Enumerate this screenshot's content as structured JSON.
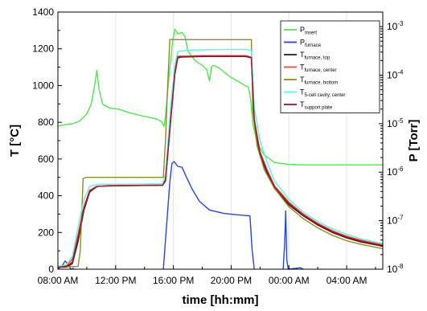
{
  "chart_data": {
    "type": "line",
    "xlabel": "time [hh:mm]",
    "ylabel_left": "T [°C]",
    "ylabel_right": "P [Torr]",
    "x_unit": "hours since 08:00 AM (day 1)",
    "xlim": [
      0,
      22.5
    ],
    "ylim_left": [
      0,
      1400
    ],
    "ylim_right_log10": [
      -8,
      -2.7
    ],
    "x_ticks": [
      {
        "value": 0,
        "label": "08:00 AM"
      },
      {
        "value": 4,
        "label": "12:00 PM"
      },
      {
        "value": 8,
        "label": "16:00 PM"
      },
      {
        "value": 12,
        "label": "20:00 PM"
      },
      {
        "value": 16,
        "label": "00:00 AM"
      },
      {
        "value": 20,
        "label": "04:00 AM"
      }
    ],
    "y_ticks_left": [
      "0",
      "200",
      "400",
      "600",
      "800",
      "1000",
      "1200",
      "1400"
    ],
    "y_ticks_right": [
      {
        "exp": -8,
        "label": "10",
        "sup": "-8"
      },
      {
        "exp": -7,
        "label": "10",
        "sup": "-7"
      },
      {
        "exp": -6,
        "label": "10",
        "sup": "-6"
      },
      {
        "exp": -5,
        "label": "10",
        "sup": "-5"
      },
      {
        "exp": -4,
        "label": "10",
        "sup": "-4"
      },
      {
        "exp": -3,
        "label": "10",
        "sup": "-3"
      }
    ],
    "vertical_gridlines": true,
    "legend_position": "top-right",
    "series": [
      {
        "name": "P",
        "sub": "Insert",
        "axis": "right",
        "color": "#4ee84e",
        "points": [
          [
            0,
            -5.05
          ],
          [
            0.5,
            -5.02
          ],
          [
            1,
            -5.0
          ],
          [
            1.5,
            -4.95
          ],
          [
            2,
            -4.8
          ],
          [
            2.3,
            -4.6
          ],
          [
            2.55,
            -4.2
          ],
          [
            2.7,
            -3.9
          ],
          [
            2.85,
            -4.3
          ],
          [
            3.1,
            -4.6
          ],
          [
            3.6,
            -4.68
          ],
          [
            4.2,
            -4.7
          ],
          [
            5,
            -4.78
          ],
          [
            6,
            -4.85
          ],
          [
            6.8,
            -4.9
          ],
          [
            7.2,
            -4.96
          ],
          [
            7.35,
            -5.06
          ],
          [
            7.45,
            -4.85
          ],
          [
            7.7,
            -4.0
          ],
          [
            7.95,
            -3.3
          ],
          [
            8.1,
            -3.05
          ],
          [
            8.3,
            -3.15
          ],
          [
            8.6,
            -3.12
          ],
          [
            8.8,
            -3.2
          ],
          [
            9.0,
            -3.5
          ],
          [
            9.5,
            -3.7
          ],
          [
            10,
            -3.8
          ],
          [
            10.3,
            -3.88
          ],
          [
            10.5,
            -4.12
          ],
          [
            10.65,
            -3.82
          ],
          [
            10.8,
            -3.8
          ],
          [
            11.2,
            -3.86
          ],
          [
            11.6,
            -3.96
          ],
          [
            12,
            -4.05
          ],
          [
            12.6,
            -4.15
          ],
          [
            13,
            -4.22
          ],
          [
            13.2,
            -4.25
          ],
          [
            13.35,
            -4.5
          ],
          [
            13.5,
            -5.0
          ],
          [
            13.8,
            -5.4
          ],
          [
            14.3,
            -5.65
          ],
          [
            15,
            -5.8
          ],
          [
            16,
            -5.84
          ],
          [
            17,
            -5.85
          ],
          [
            19,
            -5.85
          ],
          [
            22.5,
            -5.85
          ]
        ]
      },
      {
        "name": "P",
        "sub": "furnace",
        "axis": "right",
        "color": "#2446e0",
        "points": [
          [
            0,
            -8.0
          ],
          [
            0.3,
            -7.92
          ],
          [
            0.5,
            -7.83
          ],
          [
            0.7,
            -7.9
          ],
          [
            0.9,
            -8.0
          ],
          [
            1.1,
            -7.98
          ]
        ],
        "points2": [
          [
            7.3,
            -8.0
          ],
          [
            7.55,
            -7.0
          ],
          [
            7.75,
            -6.2
          ],
          [
            7.9,
            -5.82
          ],
          [
            8.05,
            -5.78
          ],
          [
            8.3,
            -5.88
          ],
          [
            8.6,
            -5.9
          ],
          [
            8.9,
            -6.1
          ],
          [
            9.3,
            -6.35
          ],
          [
            9.8,
            -6.6
          ],
          [
            10.5,
            -6.78
          ],
          [
            11.5,
            -6.85
          ],
          [
            12.5,
            -6.88
          ],
          [
            13.3,
            -6.9
          ],
          [
            13.45,
            -7.6
          ],
          [
            13.6,
            -8.0
          ]
        ],
        "points3": [
          [
            15.6,
            -8.0
          ],
          [
            15.7,
            -7.5
          ],
          [
            15.78,
            -6.8
          ],
          [
            15.85,
            -7.8
          ],
          [
            15.95,
            -8.0
          ],
          [
            16.8,
            -7.97
          ],
          [
            17.0,
            -8.0
          ]
        ]
      },
      {
        "name": "T",
        "sub": "furnace, top",
        "axis": "left",
        "color": "#3a1a1a",
        "points": [
          [
            0,
            10
          ],
          [
            0.6,
            12
          ],
          [
            1,
            30
          ],
          [
            1.4,
            150
          ],
          [
            1.8,
            320
          ],
          [
            2.2,
            420
          ],
          [
            2.7,
            450
          ],
          [
            3.5,
            455
          ],
          [
            4.5,
            455
          ],
          [
            6,
            456
          ],
          [
            7.25,
            457
          ],
          [
            7.45,
            480
          ],
          [
            7.8,
            800
          ],
          [
            8.1,
            1060
          ],
          [
            8.3,
            1150
          ],
          [
            8.6,
            1155
          ],
          [
            10,
            1158
          ],
          [
            13,
            1158
          ],
          [
            13.4,
            1150
          ],
          [
            13.6,
            800
          ],
          [
            14,
            620
          ],
          [
            14.5,
            520
          ],
          [
            15,
            440
          ],
          [
            16,
            350
          ],
          [
            17,
            290
          ],
          [
            18,
            240
          ],
          [
            19,
            200
          ],
          [
            20,
            170
          ],
          [
            21,
            148
          ],
          [
            22.5,
            125
          ]
        ]
      },
      {
        "name": "T",
        "sub": "furnace, center",
        "axis": "left",
        "color": "#f04a3a",
        "points": [
          [
            0,
            12
          ],
          [
            0.6,
            20
          ],
          [
            1,
            55
          ],
          [
            1.4,
            190
          ],
          [
            1.8,
            340
          ],
          [
            2.2,
            430
          ],
          [
            2.7,
            452
          ],
          [
            4.5,
            456
          ],
          [
            6,
            457
          ],
          [
            7.25,
            458
          ],
          [
            7.45,
            490
          ],
          [
            7.8,
            830
          ],
          [
            8.1,
            1080
          ],
          [
            8.3,
            1160
          ],
          [
            10,
            1163
          ],
          [
            13,
            1163
          ],
          [
            13.4,
            1155
          ],
          [
            13.6,
            820
          ],
          [
            14,
            640
          ],
          [
            14.5,
            540
          ],
          [
            15,
            455
          ],
          [
            16,
            365
          ],
          [
            17,
            300
          ],
          [
            18,
            250
          ],
          [
            19,
            210
          ],
          [
            20,
            180
          ],
          [
            21,
            158
          ],
          [
            22.5,
            133
          ]
        ]
      },
      {
        "name": "T",
        "sub": "furnace, bottom",
        "axis": "left",
        "color": "#8c8c28",
        "points": [
          [
            0,
            12
          ],
          [
            1.4,
            15
          ],
          [
            1.55,
            100
          ],
          [
            1.75,
            495
          ],
          [
            2,
            500
          ],
          [
            4,
            500
          ],
          [
            7.3,
            500
          ],
          [
            7.45,
            700
          ],
          [
            7.6,
            1000
          ],
          [
            7.75,
            1250
          ],
          [
            8.5,
            1250
          ],
          [
            12,
            1250
          ],
          [
            13.4,
            1250
          ],
          [
            13.5,
            860
          ],
          [
            13.8,
            670
          ],
          [
            14.3,
            540
          ],
          [
            15,
            440
          ],
          [
            16,
            340
          ],
          [
            17,
            275
          ],
          [
            18,
            225
          ],
          [
            19,
            185
          ],
          [
            20,
            155
          ],
          [
            21,
            135
          ],
          [
            22.5,
            112
          ]
        ]
      },
      {
        "name": "T",
        "sub": "5-cell cavity, center",
        "axis": "left",
        "color": "#5ff0ef",
        "points": [
          [
            0,
            15
          ],
          [
            0.6,
            25
          ],
          [
            1,
            70
          ],
          [
            1.4,
            230
          ],
          [
            1.8,
            380
          ],
          [
            2.2,
            450
          ],
          [
            2.7,
            462
          ],
          [
            4.5,
            463
          ],
          [
            7.25,
            465
          ],
          [
            7.45,
            520
          ],
          [
            7.8,
            880
          ],
          [
            8.1,
            1110
          ],
          [
            8.3,
            1185
          ],
          [
            9,
            1192
          ],
          [
            11,
            1196
          ],
          [
            13,
            1197
          ],
          [
            13.4,
            1190
          ],
          [
            13.6,
            880
          ],
          [
            14,
            700
          ],
          [
            14.5,
            580
          ],
          [
            15,
            480
          ],
          [
            16,
            380
          ],
          [
            17,
            310
          ],
          [
            18,
            260
          ],
          [
            19,
            220
          ],
          [
            20,
            190
          ],
          [
            21,
            165
          ],
          [
            22.5,
            140
          ]
        ]
      },
      {
        "name": "T",
        "sub": "support plate",
        "axis": "left",
        "color": "#a01828",
        "points": [
          [
            0,
            12
          ],
          [
            0.6,
            15
          ],
          [
            1,
            40
          ],
          [
            1.4,
            170
          ],
          [
            1.8,
            330
          ],
          [
            2.2,
            425
          ],
          [
            2.7,
            451
          ],
          [
            4.5,
            455
          ],
          [
            7.25,
            457
          ],
          [
            7.45,
            485
          ],
          [
            7.8,
            810
          ],
          [
            8.1,
            1070
          ],
          [
            8.3,
            1155
          ],
          [
            10,
            1160
          ],
          [
            13,
            1160
          ],
          [
            13.4,
            1152
          ],
          [
            13.6,
            810
          ],
          [
            14,
            630
          ],
          [
            14.5,
            530
          ],
          [
            15,
            448
          ],
          [
            16,
            358
          ],
          [
            17,
            295
          ],
          [
            18,
            245
          ],
          [
            19,
            205
          ],
          [
            20,
            175
          ],
          [
            21,
            153
          ],
          [
            22.5,
            128
          ]
        ]
      }
    ]
  }
}
